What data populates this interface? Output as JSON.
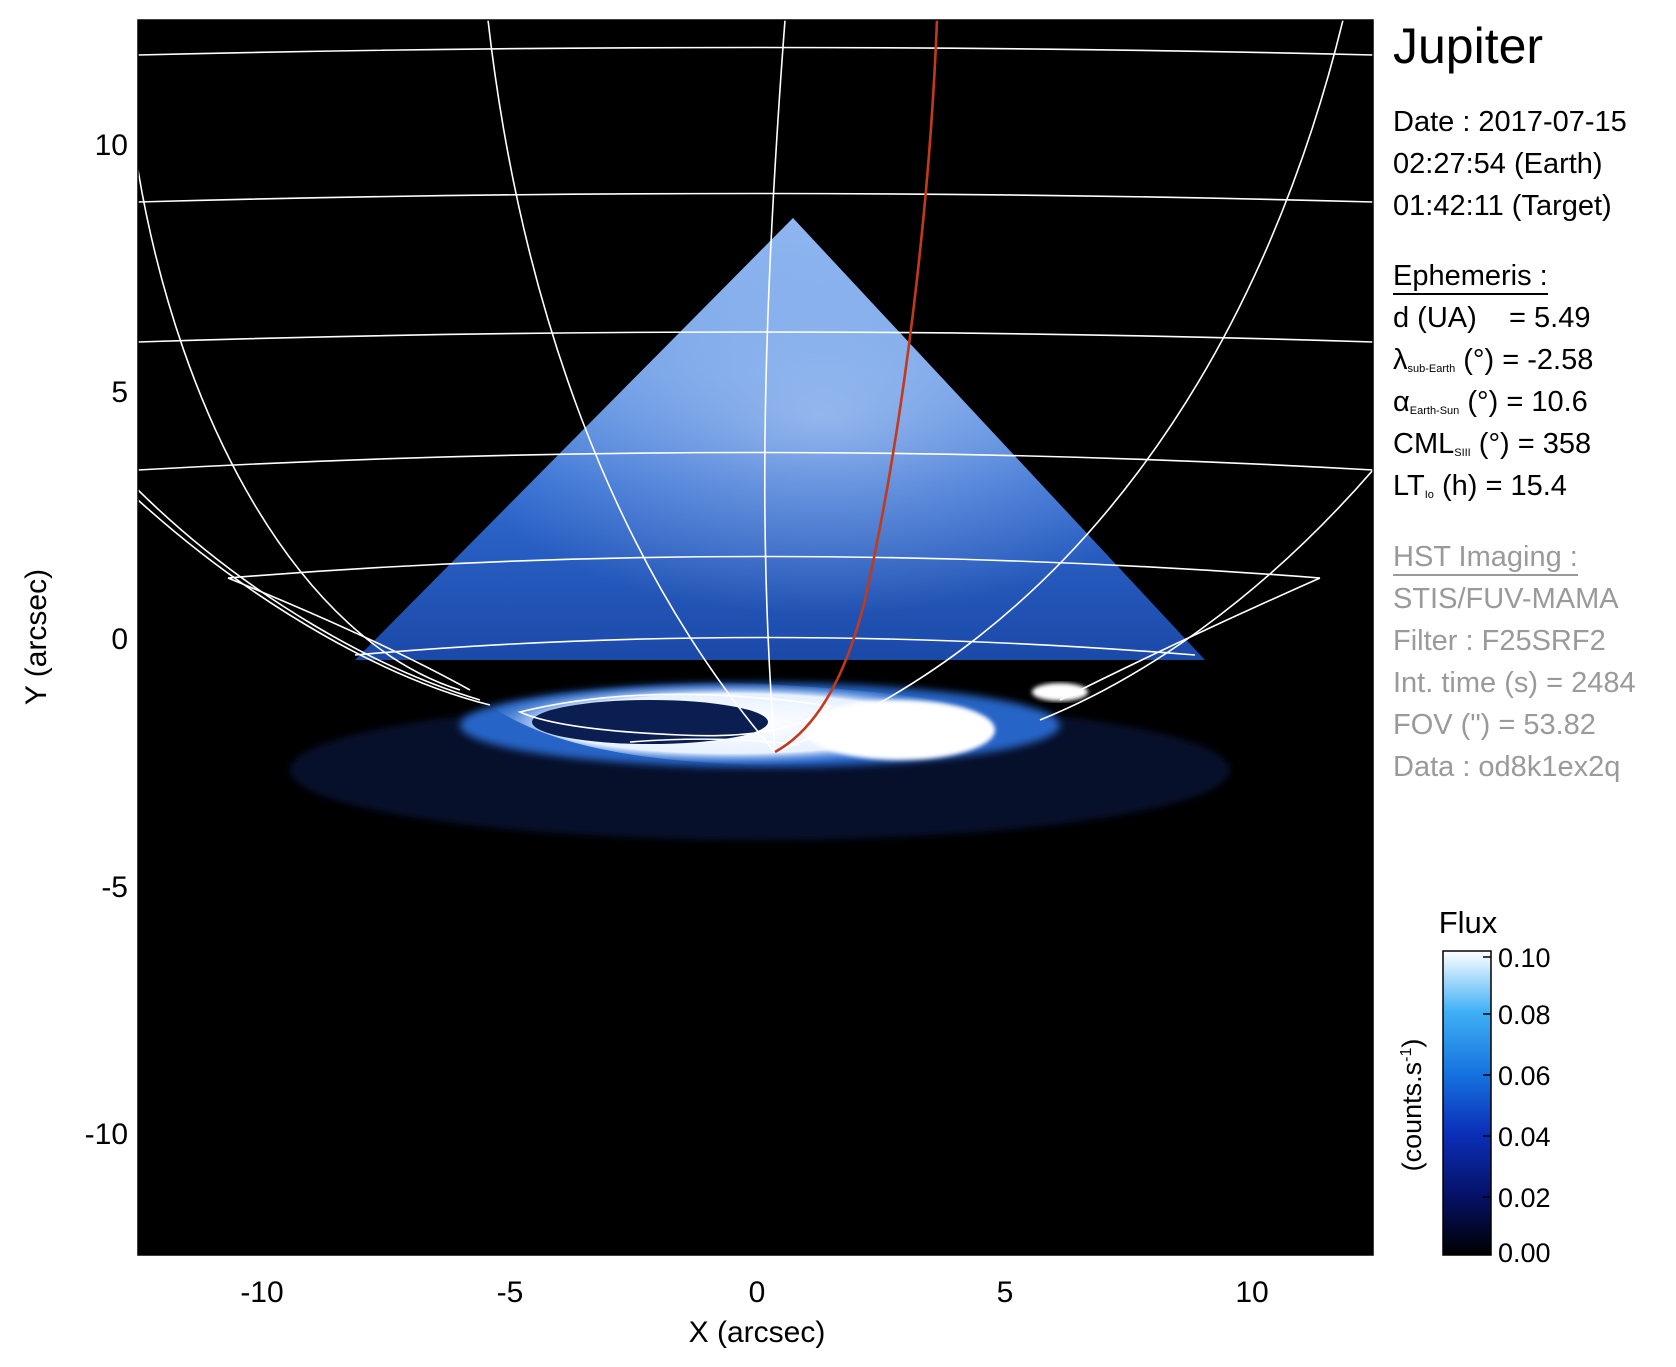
{
  "target": "Jupiter",
  "date_block": {
    "date": "Date : 2017-07-15",
    "earth_time": "02:27:54 (Earth)",
    "target_time": "01:42:11 (Target)"
  },
  "ephemeris": {
    "header": "Ephemeris :",
    "distance": "d (UA)    = 5.49",
    "lat_symbol": "λ",
    "lat_sub": "sub-Earth",
    "lat_rest": " (°) = -2.58",
    "phase_symbol": "α",
    "phase_sub": "Earth-Sun",
    "phase_rest": " (°) = 10.6",
    "cml_main": "CML",
    "cml_sub": "SIII",
    "cml_rest": " (°) = 358",
    "lt_main": "LT",
    "lt_sub": "Io",
    "lt_rest": " (h) = 15.4"
  },
  "hst": {
    "header": "HST Imaging :",
    "instrument": "STIS/FUV-MAMA",
    "filter": "Filter : F25SRF2",
    "int_time": "Int. time (s) = 2484",
    "fov": "FOV (\") = 53.82",
    "data": "Data : od8k1ex2q"
  },
  "chart_data": {
    "type": "image",
    "xlabel": "X (arcsec)",
    "ylabel": "Y (arcsec)",
    "xlim": [
      -12.5,
      12.5
    ],
    "ylim": [
      -12.5,
      12.5
    ],
    "x_ticks": [
      "-10",
      "-5",
      "0",
      "5",
      "10"
    ],
    "x_tick_values": [
      -10,
      -5,
      0,
      5,
      10
    ],
    "y_ticks": [
      "10",
      "5",
      "0",
      "-5",
      "-10"
    ],
    "y_tick_values": [
      10,
      5,
      0,
      -5,
      -10
    ],
    "colorbar": {
      "title": "Flux",
      "label": "(counts.s",
      "label_sup": "-1",
      "label_close": ")",
      "ticks": [
        "0.10",
        "0.08",
        "0.06",
        "0.04",
        "0.02",
        "0.00"
      ],
      "tick_values": [
        0.1,
        0.08,
        0.06,
        0.04,
        0.02,
        0.0
      ],
      "range": [
        0.0,
        0.1
      ]
    },
    "colors": {
      "background": "#000000",
      "grid": "#ffffff",
      "footprint_line": "#c23a1a",
      "emission": "#2a6ed8",
      "aurora": "#ffffff"
    }
  }
}
